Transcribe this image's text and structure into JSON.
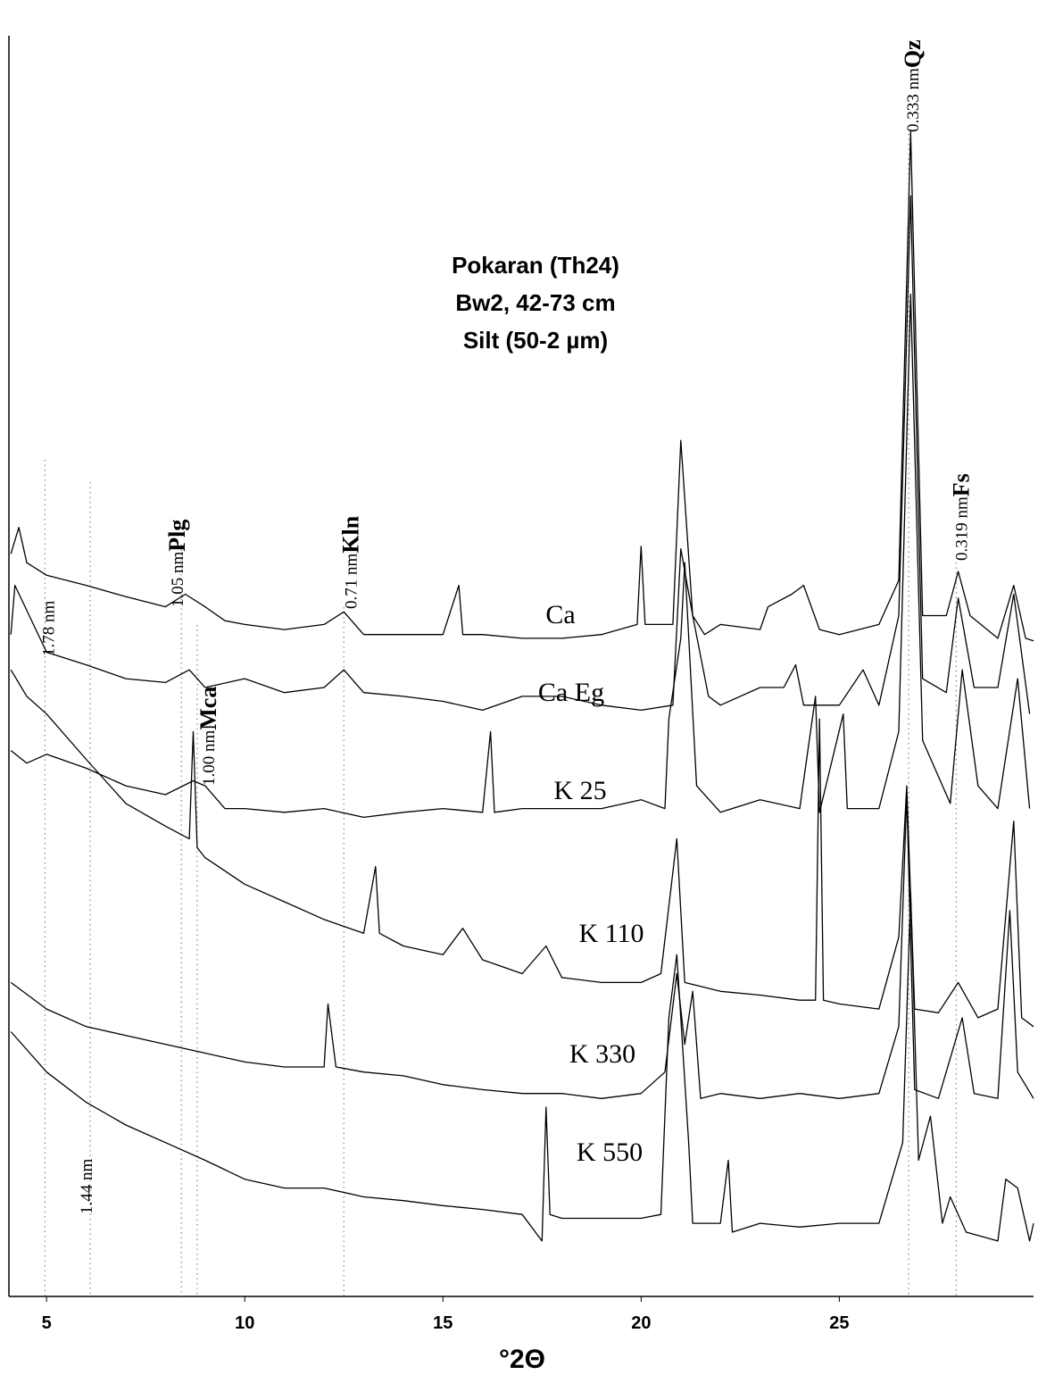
{
  "chart_data": {
    "type": "line",
    "title": [
      "Pokaran (Th24)",
      "Bw2, 42-73 cm",
      "Silt (50-2 µm)"
    ],
    "xlabel": "°2Θ",
    "xlim": [
      4.05,
      29.9
    ],
    "ylim": [
      0,
      100
    ],
    "xticks": [
      5,
      10,
      15,
      20,
      25
    ],
    "series": [
      {
        "name": "Ca",
        "color": "#000000",
        "x": [
          4.1,
          4.3,
          4.5,
          5,
          6,
          7,
          8,
          8.5,
          9,
          9.5,
          10,
          11,
          12,
          12.5,
          13,
          14,
          15,
          15.4,
          15.5,
          16,
          17,
          18,
          19,
          19.9,
          20,
          20.1,
          20.8,
          21,
          21.3,
          21.6,
          22,
          23,
          23.2,
          23.8,
          24.1,
          24.5,
          25,
          26,
          26.5,
          26.8,
          27.1,
          27.7,
          28,
          28.3,
          29,
          29.4,
          29.7,
          29.9
        ],
        "values": [
          58.9,
          61.0,
          58.2,
          57.2,
          56.4,
          55.5,
          54.7,
          55.7,
          54.7,
          53.6,
          53.3,
          52.9,
          53.3,
          54.3,
          52.5,
          52.5,
          52.5,
          56.4,
          52.5,
          52.5,
          52.2,
          52.2,
          52.5,
          53.3,
          59.5,
          53.3,
          53.3,
          67.9,
          54.0,
          52.5,
          53.3,
          52.9,
          54.7,
          55.7,
          56.4,
          52.9,
          52.5,
          53.3,
          56.8,
          92.4,
          54.0,
          54.0,
          57.5,
          54.0,
          52.2,
          56.4,
          52.2,
          52.0
        ]
      },
      {
        "name": "Ca Eg",
        "color": "#000000",
        "x": [
          4.1,
          4.2,
          5,
          6,
          7,
          8,
          8.6,
          9,
          10,
          11,
          12,
          12.5,
          13,
          14,
          15,
          16,
          17,
          18,
          19,
          20,
          20.8,
          21,
          21.3,
          21.7,
          22,
          23,
          23.6,
          23.9,
          24.1,
          25,
          25.6,
          26,
          26.5,
          26.8,
          27.1,
          27.7,
          28,
          28.4,
          29,
          29.4,
          29.8
        ],
        "values": [
          52.5,
          56.4,
          51.1,
          50.1,
          49.0,
          48.7,
          49.7,
          48.3,
          49.0,
          47.9,
          48.3,
          49.7,
          47.9,
          47.6,
          47.2,
          46.5,
          47.6,
          47.6,
          46.9,
          46.5,
          46.9,
          59.3,
          54.0,
          47.6,
          46.9,
          48.3,
          48.3,
          50.1,
          46.9,
          46.9,
          49.7,
          46.9,
          54.0,
          87.3,
          49.0,
          47.9,
          55.4,
          48.3,
          48.3,
          55.7,
          46.2
        ]
      },
      {
        "name": "K 25",
        "color": "#000000",
        "x": [
          4.1,
          4.5,
          5,
          6,
          7,
          8,
          8.7,
          9,
          9.5,
          10,
          11,
          12,
          13,
          14,
          15,
          16,
          16.2,
          16.3,
          17,
          18,
          19,
          20,
          20.6,
          20.7,
          21,
          21.1,
          21.4,
          22,
          23,
          24,
          24.4,
          24.5,
          25.1,
          25.2,
          26,
          26.5,
          26.8,
          27.1,
          27.8,
          28.1,
          28.5,
          29,
          29.5,
          29.8
        ],
        "values": [
          43.3,
          42.3,
          43.0,
          41.9,
          40.5,
          39.8,
          40.9,
          40.5,
          38.7,
          38.7,
          38.4,
          38.7,
          38.0,
          38.4,
          38.7,
          38.4,
          44.8,
          38.4,
          38.7,
          38.7,
          38.7,
          39.4,
          38.7,
          45.8,
          52.2,
          58.2,
          40.5,
          38.4,
          39.4,
          38.7,
          47.6,
          38.4,
          46.2,
          38.7,
          38.7,
          44.8,
          79.5,
          44.1,
          39.1,
          49.7,
          40.5,
          38.7,
          49.0,
          38.7
        ]
      },
      {
        "name": "K 110",
        "color": "#000000",
        "x": [
          4.1,
          4.5,
          5,
          6,
          7,
          8,
          8.6,
          8.7,
          8.8,
          9,
          10,
          11,
          12,
          13,
          13.3,
          13.4,
          14,
          15,
          15.5,
          16,
          17,
          17.6,
          18,
          19,
          20,
          20.5,
          20.9,
          21.1,
          22,
          23,
          24,
          24.4,
          24.5,
          24.6,
          25,
          26,
          26.5,
          26.7,
          26.9,
          27.5,
          28,
          28.5,
          29,
          29.4,
          29.6,
          29.9
        ],
        "values": [
          49.7,
          47.6,
          46.2,
          42.6,
          39.1,
          37.3,
          36.3,
          44.8,
          35.6,
          34.8,
          32.7,
          31.3,
          29.9,
          28.8,
          34.1,
          28.8,
          27.8,
          27.1,
          29.2,
          26.7,
          25.6,
          27.8,
          25.3,
          24.9,
          24.9,
          25.6,
          36.3,
          24.9,
          24.2,
          23.9,
          23.5,
          23.5,
          45.8,
          23.5,
          23.2,
          22.8,
          28.5,
          40.5,
          22.8,
          22.5,
          24.9,
          22.1,
          22.8,
          37.7,
          22.1,
          21.4
        ]
      },
      {
        "name": "K 330",
        "color": "#000000",
        "x": [
          4.1,
          5,
          6,
          7,
          8,
          9,
          10,
          11,
          12,
          12.1,
          12.3,
          13,
          14,
          15,
          16,
          17,
          18,
          19,
          20,
          20.6,
          20.9,
          21.1,
          21.3,
          21.5,
          22,
          23,
          24,
          25,
          26,
          26.5,
          26.7,
          26.9,
          27.5,
          28.1,
          28.4,
          29,
          29.3,
          29.5,
          29.9
        ],
        "values": [
          24.9,
          22.8,
          21.4,
          20.7,
          20.0,
          19.3,
          18.6,
          18.2,
          18.2,
          23.2,
          18.2,
          17.8,
          17.5,
          16.8,
          16.4,
          16.1,
          16.1,
          15.7,
          16.1,
          17.8,
          25.6,
          20.0,
          24.2,
          15.7,
          16.1,
          15.7,
          16.1,
          15.7,
          16.1,
          21.4,
          39.8,
          16.4,
          15.7,
          22.1,
          16.1,
          15.7,
          30.6,
          17.8,
          15.7
        ]
      },
      {
        "name": "K 550",
        "color": "#000000",
        "x": [
          4.1,
          5,
          6,
          7,
          8,
          9,
          10,
          11,
          12,
          13,
          14,
          15,
          16,
          17,
          17.5,
          17.6,
          17.7,
          18,
          19,
          20,
          20.5,
          20.7,
          20.9,
          21.2,
          21.3,
          22,
          22.2,
          22.3,
          23,
          24,
          25,
          26,
          26.6,
          26.8,
          27,
          27.3,
          27.6,
          27.8,
          28.2,
          29,
          29.2,
          29.5,
          29.8,
          29.9
        ],
        "values": [
          21.0,
          17.8,
          15.4,
          13.6,
          12.2,
          10.8,
          9.3,
          8.6,
          8.6,
          7.9,
          7.6,
          7.2,
          6.9,
          6.5,
          4.4,
          15.0,
          6.5,
          6.2,
          6.2,
          6.2,
          6.5,
          22.1,
          27.1,
          12.2,
          5.8,
          5.8,
          10.8,
          5.1,
          5.8,
          5.5,
          5.8,
          5.8,
          12.2,
          32.0,
          10.8,
          14.3,
          5.8,
          7.9,
          5.1,
          4.4,
          9.3,
          8.6,
          4.4,
          5.8
        ]
      }
    ],
    "annotations": [
      {
        "text": "1.78 nm",
        "x": 4.96
      },
      {
        "text": "1.44 nm",
        "x": 6.1
      },
      {
        "text": "1.05 nm",
        "mineral": "Plg",
        "x": 8.4
      },
      {
        "text": "1.00 nm",
        "mineral": "Mca",
        "x": 8.8
      },
      {
        "text": "0.71 nm",
        "mineral": "Kln",
        "x": 12.5
      },
      {
        "text": "0.333 nm",
        "mineral": "Qz",
        "x": 26.75
      },
      {
        "text": "0.319 nm",
        "mineral": "Fs",
        "x": 27.95
      }
    ]
  }
}
